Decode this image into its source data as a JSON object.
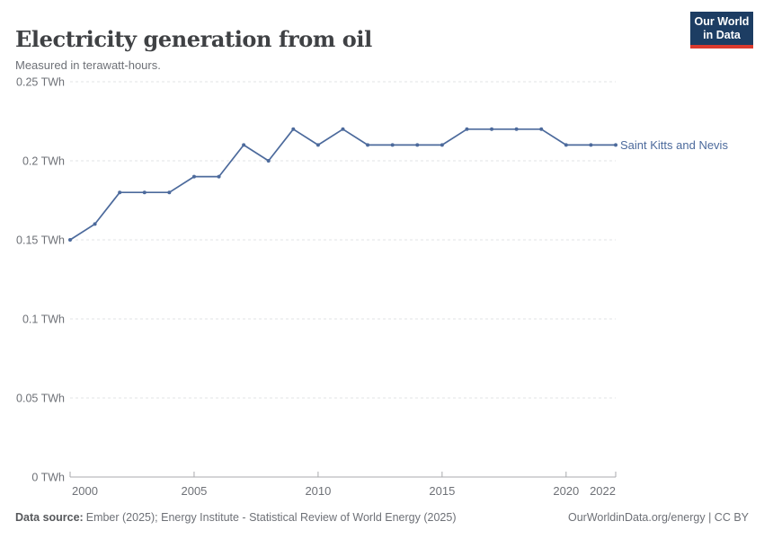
{
  "chart_data": {
    "type": "line",
    "title": "Electricity generation from oil",
    "subtitle": "Measured in terawatt-hours.",
    "unit": "TWh",
    "x": [
      2000,
      2001,
      2002,
      2003,
      2004,
      2005,
      2006,
      2007,
      2008,
      2009,
      2010,
      2011,
      2012,
      2013,
      2014,
      2015,
      2016,
      2017,
      2018,
      2019,
      2020,
      2021,
      2022
    ],
    "series": [
      {
        "name": "Saint Kitts and Nevis",
        "color": "#4c6a9c",
        "values": [
          0.15,
          0.16,
          0.18,
          0.18,
          0.18,
          0.19,
          0.19,
          0.21,
          0.2,
          0.22,
          0.21,
          0.22,
          0.21,
          0.21,
          0.21,
          0.21,
          0.22,
          0.22,
          0.22,
          0.22,
          0.21,
          0.21,
          0.21
        ]
      }
    ],
    "xlim": [
      2000,
      2022
    ],
    "ylim": [
      0,
      0.25
    ],
    "yticks": [
      {
        "value": 0,
        "label": "0 TWh"
      },
      {
        "value": 0.05,
        "label": "0.05 TWh"
      },
      {
        "value": 0.1,
        "label": "0.1 TWh"
      },
      {
        "value": 0.15,
        "label": "0.15 TWh"
      },
      {
        "value": 0.2,
        "label": "0.2 TWh"
      },
      {
        "value": 0.25,
        "label": "0.25 TWh"
      }
    ],
    "xticks": [
      {
        "value": 2000,
        "label": "2000"
      },
      {
        "value": 2005,
        "label": "2005"
      },
      {
        "value": 2010,
        "label": "2010"
      },
      {
        "value": 2015,
        "label": "2015"
      },
      {
        "value": 2020,
        "label": "2020"
      },
      {
        "value": 2022,
        "label": "2022"
      }
    ],
    "grid": "horizontal-dashed",
    "legend_position": "line-end-label"
  },
  "logo": {
    "line1": "Our World",
    "line2": "in Data",
    "bg_color": "#1d3d63",
    "accent_color": "#dc3a2e"
  },
  "footer": {
    "source_label": "Data source:",
    "source_text": "Ember (2025); Energy Institute - Statistical Review of World Energy (2025)",
    "license_text": "OurWorldinData.org/energy | CC BY"
  }
}
